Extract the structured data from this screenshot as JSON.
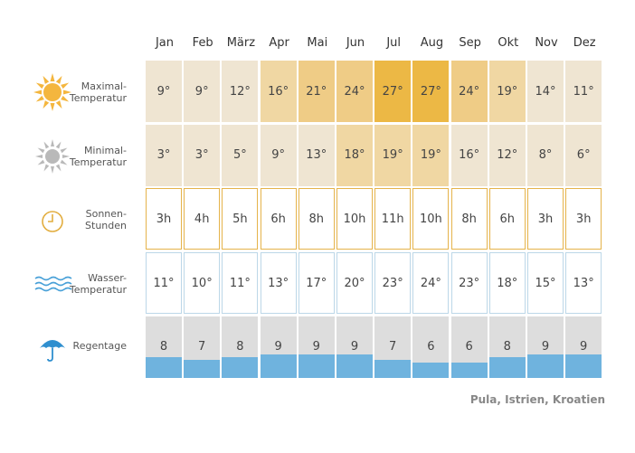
{
  "chart_data": {
    "type": "table",
    "months": [
      "Jan",
      "Feb",
      "März",
      "Apr",
      "Mai",
      "Jun",
      "Jul",
      "Aug",
      "Sep",
      "Okt",
      "Nov",
      "Dez"
    ],
    "rows": [
      {
        "key": "max",
        "label_lines": [
          "Maximal-",
          "Temperatur"
        ],
        "icon": "sun-icon",
        "values": [
          "9°",
          "9°",
          "12°",
          "16°",
          "21°",
          "24°",
          "27°",
          "27°",
          "24°",
          "19°",
          "14°",
          "11°"
        ],
        "colors": [
          "#efe5d2",
          "#efe5d2",
          "#efe5d2",
          "#f0d7a3",
          "#efcc86",
          "#efcc86",
          "#ecb845",
          "#ecb845",
          "#efcc86",
          "#f0d7a3",
          "#efe5d2",
          "#efe5d2"
        ]
      },
      {
        "key": "min",
        "label_lines": [
          "Minimal-",
          "Temperatur"
        ],
        "icon": "grey-sun-icon",
        "values": [
          "3°",
          "3°",
          "5°",
          "9°",
          "13°",
          "18°",
          "19°",
          "19°",
          "16°",
          "12°",
          "8°",
          "6°"
        ],
        "colors": [
          "#efe5d2",
          "#efe5d2",
          "#efe5d2",
          "#efe5d2",
          "#efe5d2",
          "#f0d7a3",
          "#f0d7a3",
          "#f0d7a3",
          "#efe5d2",
          "#efe5d2",
          "#efe5d2",
          "#efe5d2"
        ]
      },
      {
        "key": "sun",
        "label_lines": [
          "Sonnen-",
          "Stunden"
        ],
        "icon": "clock-icon",
        "values": [
          "3h",
          "4h",
          "5h",
          "6h",
          "8h",
          "10h",
          "11h",
          "10h",
          "8h",
          "6h",
          "3h",
          "3h"
        ]
      },
      {
        "key": "water",
        "label_lines": [
          "Wasser-",
          "Temperatur"
        ],
        "icon": "waves-icon",
        "values": [
          "11°",
          "10°",
          "11°",
          "13°",
          "17°",
          "20°",
          "23°",
          "24°",
          "23°",
          "18°",
          "15°",
          "13°"
        ]
      },
      {
        "key": "rain",
        "label_lines": [
          "Regentage"
        ],
        "icon": "umbrella-icon",
        "values": [
          8,
          7,
          8,
          9,
          9,
          9,
          7,
          6,
          6,
          8,
          9,
          9
        ]
      }
    ],
    "caption": "Pula, Istrien, Kroatien"
  }
}
